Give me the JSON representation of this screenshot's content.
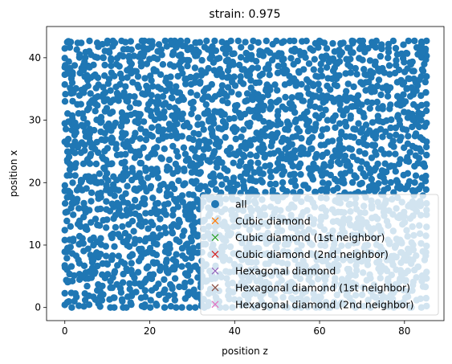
{
  "chart_data": {
    "type": "scatter",
    "title": "strain: 0.975",
    "xlabel": "position z",
    "ylabel": "position x",
    "xlim": [
      -4.3,
      89.3
    ],
    "ylim": [
      -2.1,
      45.0
    ],
    "xticks": [
      0,
      20,
      40,
      60,
      80
    ],
    "yticks": [
      0,
      10,
      20,
      30,
      40
    ],
    "grid": false,
    "legend_position": "lower right",
    "series": [
      {
        "name": "all",
        "marker": "circle",
        "color": "#1f77b4",
        "x_range": [
          0,
          85.2
        ],
        "y_range": [
          0,
          42.7
        ],
        "fill": "dense uniform"
      },
      {
        "name": "Cubic diamond",
        "marker": "x",
        "color": "#ff7f0e",
        "x": [],
        "y": []
      },
      {
        "name": "Cubic diamond (1st neighbor)",
        "marker": "x",
        "color": "#2ca02c",
        "x": [],
        "y": []
      },
      {
        "name": "Cubic diamond (2nd neighbor)",
        "marker": "x",
        "color": "#d62728",
        "x": [],
        "y": []
      },
      {
        "name": "Hexagonal diamond",
        "marker": "x",
        "color": "#9467bd",
        "x": [],
        "y": []
      },
      {
        "name": "Hexagonal diamond (1st neighbor)",
        "marker": "x",
        "color": "#8c564b",
        "x": [],
        "y": []
      },
      {
        "name": "Hexagonal diamond (2nd neighbor)",
        "marker": "x",
        "color": "#e377c2",
        "x": [],
        "y": []
      }
    ]
  }
}
